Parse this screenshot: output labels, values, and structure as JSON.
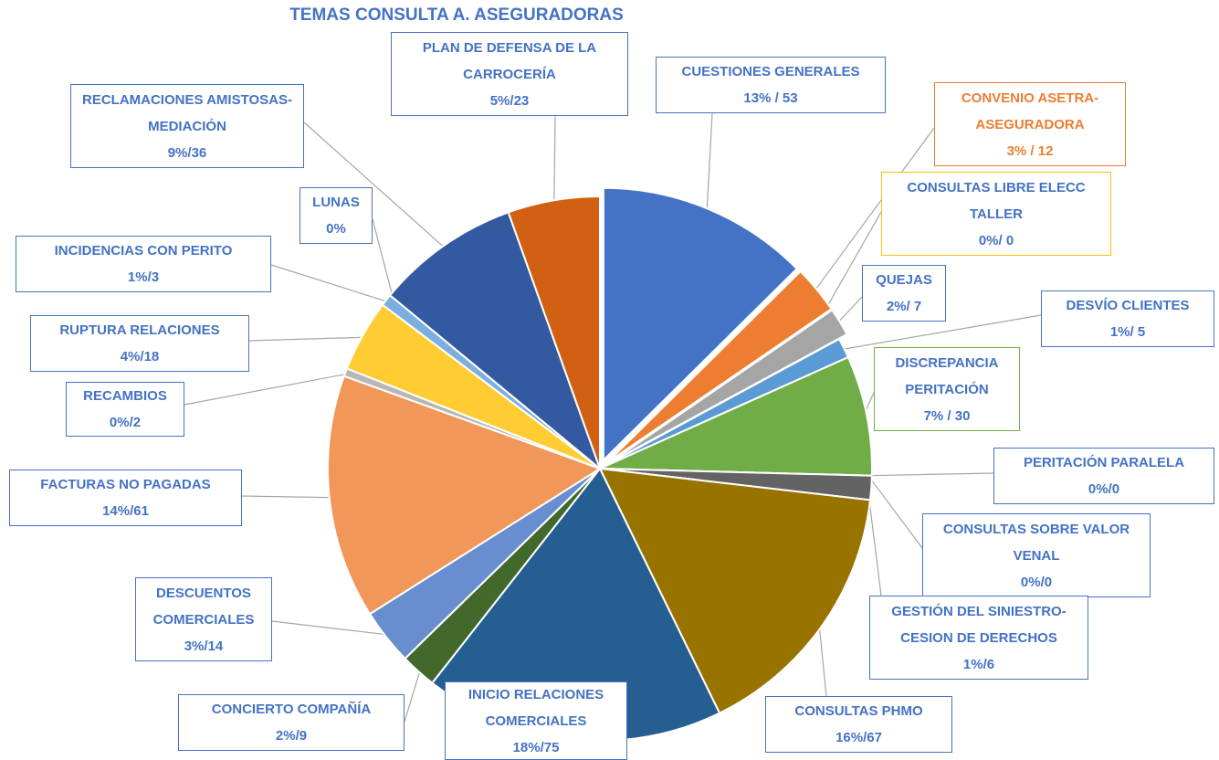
{
  "chart_data": {
    "type": "pie",
    "title": "TEMAS CONSULTA A. ASEGURADORAS",
    "categories": [
      "CUESTIONES GENERALES",
      "CONVENIO ASETRA-ASEGURADORA",
      "CONSULTAS LIBRE ELECC TALLER",
      "QUEJAS",
      "DESVÍO CLIENTES",
      "DISCREPANCIA PERITACIÓN",
      "PERITACIÓN PARALELA",
      "CONSULTAS SOBRE VALOR VENAL",
      "GESTIÓN DEL SINIESTRO-CESION DE DERECHOS",
      "CONSULTAS PHMO",
      "INICIO RELACIONES COMERCIALES",
      "CONCIERTO COMPAÑÍA",
      "DESCUENTOS COMERCIALES",
      "FACTURAS NO PAGADAS",
      "RECAMBIOS",
      "RUPTURA RELACIONES",
      "INCIDENCIAS CON PERITO",
      "LUNAS",
      "RECLAMACIONES AMISTOSAS-MEDIACIÓN",
      "PLAN DE DEFENSA DE LA CARROCERÍA"
    ],
    "values": [
      53,
      12,
      0,
      7,
      5,
      30,
      0,
      0,
      6,
      67,
      75,
      9,
      14,
      61,
      2,
      18,
      3,
      0,
      36,
      23
    ],
    "value_labels": [
      "13% / 53",
      "3% / 12",
      "0%/ 0",
      "2%/ 7",
      "1%/ 5",
      "7% / 30",
      "0%/0",
      "0%/0",
      "1%/6",
      "16%/67",
      "18%/75",
      "2%/9",
      "3%/14",
      "14%/61",
      "0%/2",
      "4%/18",
      "1%/3",
      "0%",
      "9%/36",
      "5%/23"
    ],
    "colors": [
      "#4472c4",
      "#ed7d31",
      "#ffc000",
      "#a5a5a5",
      "#5b9bd5",
      "#70ad47",
      "#264478",
      "#9e480e",
      "#636363",
      "#997300",
      "#255e91",
      "#43682b",
      "#698ed0",
      "#f1975a",
      "#b7b7b7",
      "#ffcd33",
      "#7cafdd",
      "#8cc168",
      "#335aa1",
      "#d26012"
    ],
    "exploded": [
      0,
      1,
      3
    ]
  }
}
